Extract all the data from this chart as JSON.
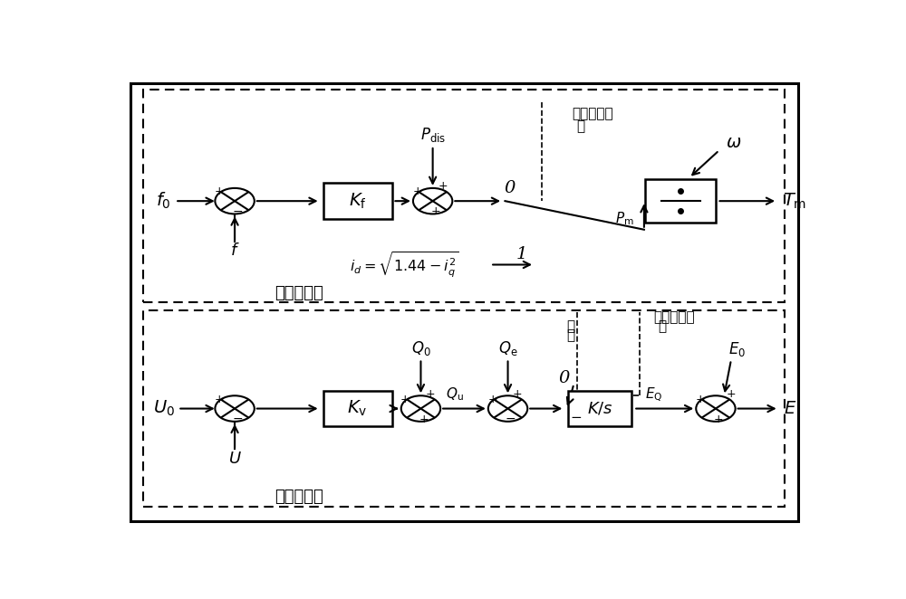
{
  "bg_color": "#ffffff",
  "top_label": "有功环控制",
  "bot_label": "无功环控制",
  "fault_label1": "电网故障标",
  "fault_label2": "志",
  "clear_label1": "清",
  "clear_label2": "零"
}
